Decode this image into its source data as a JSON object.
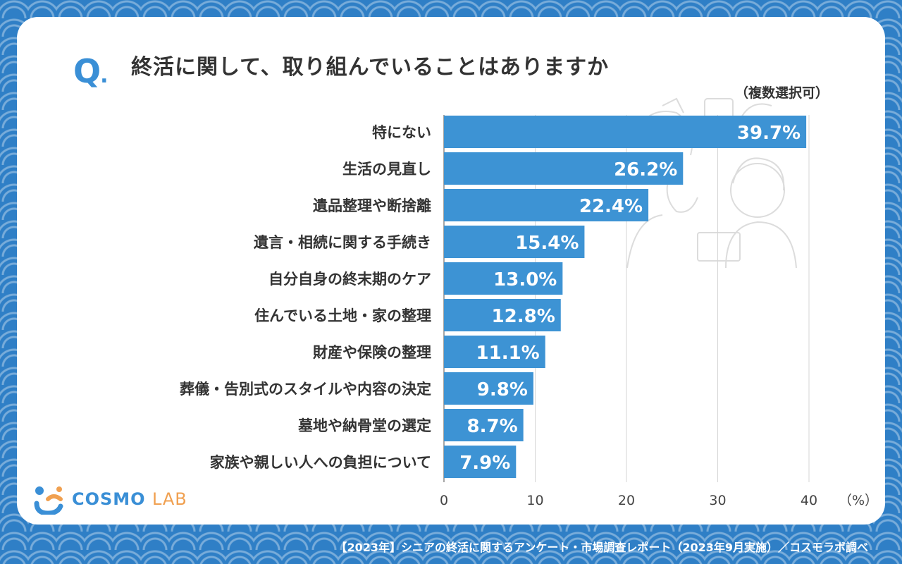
{
  "header": {
    "q_mark": "Q",
    "q_dot": ".",
    "title": "終活に関して、取り組んでいることはありますか",
    "note": "（複数選択可）"
  },
  "chart_data": {
    "type": "bar",
    "orientation": "horizontal",
    "categories": [
      "特にない",
      "生活の見直し",
      "遺品整理や断捨離",
      "遺言・相続に関する手続き",
      "自分自身の終末期のケア",
      "住んでいる土地・家の整理",
      "財産や保険の整理",
      "葬儀・告別式のスタイルや内容の決定",
      "墓地や納骨堂の選定",
      "家族や親しい人への負担について"
    ],
    "values": [
      39.7,
      26.2,
      22.4,
      15.4,
      13.0,
      12.8,
      11.1,
      9.8,
      8.7,
      7.9
    ],
    "value_labels": [
      "39.7%",
      "26.2%",
      "22.4%",
      "15.4%",
      "13.0%",
      "12.8%",
      "11.1%",
      "9.8%",
      "8.7%",
      "7.9%"
    ],
    "xlim": [
      0,
      40
    ],
    "xticks": [
      "0",
      "10",
      "20",
      "30",
      "40"
    ],
    "unit_label": "（%）",
    "grid": true,
    "bar_color": "#3d93d4"
  },
  "logo": {
    "main": "COSMO",
    "sub": "LAB"
  },
  "footer": "【2023年】シニアの終活に関するアンケート・市場調査レポート（2023年9月実施）／コスモラボ調べ",
  "colors": {
    "background": "#2f7fc6",
    "accent": "#3a8fd6",
    "text": "#333333"
  }
}
